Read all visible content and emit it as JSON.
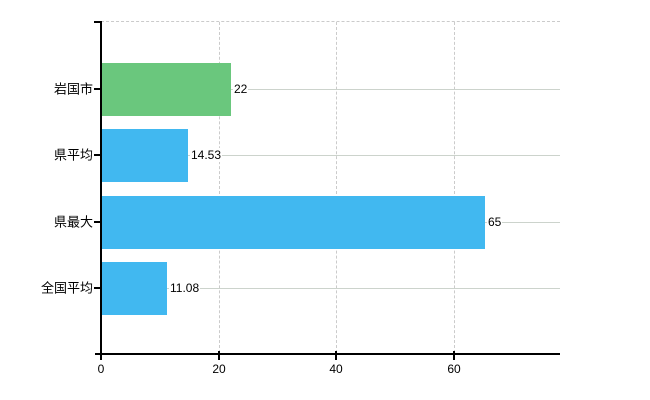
{
  "chart_data": {
    "type": "bar",
    "orientation": "horizontal",
    "title": "",
    "categories": [
      "岩国市",
      "県平均",
      "県最大",
      "全国平均"
    ],
    "values": [
      22,
      14.53,
      65,
      11.08
    ],
    "value_labels": [
      "22",
      "14.53",
      "65",
      "11.08"
    ],
    "bar_colors": [
      "#6ac77d",
      "#41b8f0",
      "#41b8f0",
      "#41b8f0"
    ],
    "x_ticks": [
      0,
      20,
      40,
      60
    ],
    "x_tick_labels": [
      "0",
      "20",
      "40",
      "60"
    ],
    "xlim": [
      0,
      78
    ],
    "ylabel": "",
    "xlabel": "",
    "legend": null,
    "grid": {
      "vertical_style": "dashed",
      "horizontal_style": "solid",
      "top_border_style": "dashed"
    }
  },
  "colors": {
    "background": "#ffffff",
    "axis": "#000000",
    "grid_vertical": "#cbcbcb",
    "grid_horizontal": "#ccd3cc",
    "text": "#000000",
    "bar_highlight": "#6ac77d",
    "bar_default": "#41b8f0"
  }
}
